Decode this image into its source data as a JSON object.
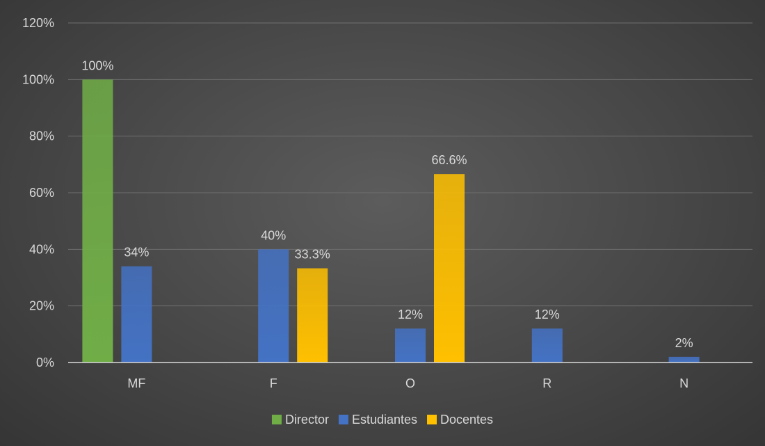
{
  "chart_data": {
    "type": "bar",
    "categories": [
      "MF",
      "F",
      "O",
      "R",
      "N"
    ],
    "series": [
      {
        "name": "Director",
        "values": [
          100,
          null,
          null,
          null,
          null
        ],
        "labels": [
          "100%",
          "",
          "",
          "",
          ""
        ],
        "color": "#70ad47"
      },
      {
        "name": "Estudiantes",
        "values": [
          34,
          40,
          12,
          12,
          2
        ],
        "labels": [
          "34%",
          "40%",
          "12%",
          "12%",
          "2%"
        ],
        "color": "#4472c4"
      },
      {
        "name": "Docentes",
        "values": [
          null,
          33.3,
          66.6,
          null,
          null
        ],
        "labels": [
          "",
          "33.3%",
          "66.6%",
          "",
          ""
        ],
        "color": "#ffc000"
      }
    ],
    "yticks": [
      "0%",
      "20%",
      "40%",
      "60%",
      "80%",
      "100%",
      "120%"
    ],
    "ylim": [
      0,
      120
    ],
    "grid": true,
    "legend": "bottom"
  }
}
